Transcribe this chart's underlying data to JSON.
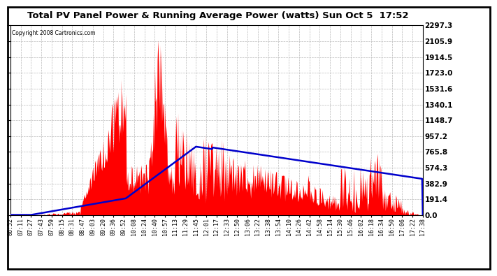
{
  "title": "Total PV Panel Power & Running Average Power (watts) Sun Oct 5  17:52",
  "copyright": "Copyright 2008 Cartronics.com",
  "yticks": [
    0.0,
    191.4,
    382.9,
    574.3,
    765.8,
    957.2,
    1148.7,
    1340.1,
    1531.6,
    1723.0,
    1914.5,
    2105.9,
    2297.3
  ],
  "ymax": 2297.3,
  "ymin": 0.0,
  "bg_color": "#ffffff",
  "plot_bg_color": "#ffffff",
  "grid_color": "#bbbbbb",
  "bar_color": "#ff0000",
  "avg_color": "#0000cc",
  "xtick_labels": [
    "06:52",
    "07:11",
    "07:27",
    "07:43",
    "07:59",
    "08:15",
    "08:31",
    "08:47",
    "09:03",
    "09:20",
    "09:36",
    "09:52",
    "10:08",
    "10:24",
    "10:40",
    "10:57",
    "11:13",
    "11:29",
    "11:45",
    "12:01",
    "12:17",
    "12:33",
    "12:50",
    "13:06",
    "13:22",
    "13:38",
    "13:54",
    "14:10",
    "14:26",
    "14:42",
    "14:58",
    "15:14",
    "15:30",
    "15:46",
    "16:02",
    "16:18",
    "16:34",
    "16:50",
    "17:06",
    "17:22",
    "17:38"
  ]
}
